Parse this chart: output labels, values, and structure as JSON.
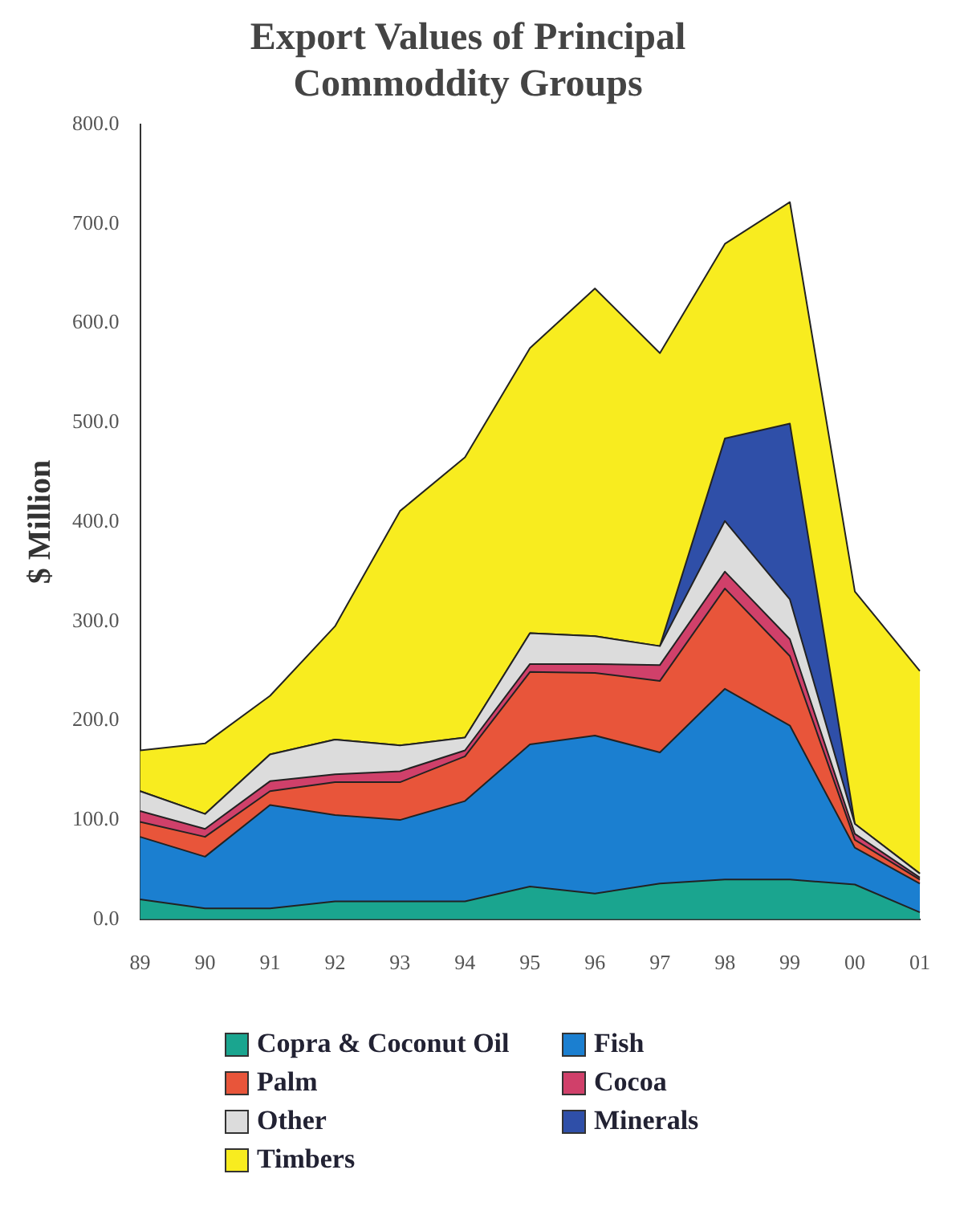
{
  "chart_data": {
    "type": "area",
    "stacked": true,
    "title": [
      "Export Values of Principal",
      "Commoddity Groups"
    ],
    "ylabel": "$ Million",
    "categories": [
      "89",
      "90",
      "91",
      "92",
      "93",
      "94",
      "95",
      "96",
      "97",
      "98",
      "99",
      "00",
      "01"
    ],
    "ylim": [
      0,
      800
    ],
    "yticks": [
      {
        "value": 0,
        "label": "0.0"
      },
      {
        "value": 100,
        "label": "100.0"
      },
      {
        "value": 200,
        "label": "200.0"
      },
      {
        "value": 300,
        "label": "300.0"
      },
      {
        "value": 400,
        "label": "400.0"
      },
      {
        "value": 500,
        "label": "500.0"
      },
      {
        "value": 600,
        "label": "600.0"
      },
      {
        "value": 700,
        "label": "700.0"
      },
      {
        "value": 800,
        "label": "800.0"
      }
    ],
    "grid": false,
    "legend": "bottom",
    "series": [
      {
        "name": "Copra & Coconut Oil",
        "color": "#1aa58f",
        "values": [
          20,
          11,
          11,
          18,
          18,
          18,
          33,
          26,
          36,
          40,
          40,
          35,
          7
        ]
      },
      {
        "name": "Fish",
        "color": "#1b7fd0",
        "values": [
          63,
          52,
          104,
          87,
          82,
          101,
          143,
          159,
          132,
          192,
          155,
          37,
          29
        ]
      },
      {
        "name": "Palm",
        "color": "#e8553a",
        "values": [
          15,
          20,
          14,
          33,
          38,
          45,
          73,
          63,
          72,
          101,
          70,
          8,
          4
        ]
      },
      {
        "name": "Cocoa",
        "color": "#d0406a",
        "values": [
          11,
          8,
          10,
          8,
          11,
          6,
          8,
          9,
          16,
          17,
          17,
          6,
          2
        ]
      },
      {
        "name": "Other",
        "color": "#dcdcdc",
        "values": [
          20,
          15,
          27,
          35,
          26,
          13,
          31,
          28,
          19,
          51,
          40,
          10,
          4
        ]
      },
      {
        "name": "Minerals",
        "color": "#2f4fa8",
        "values": [
          0,
          0,
          0,
          0,
          0,
          0,
          0,
          0,
          0,
          83,
          177,
          0,
          0
        ]
      },
      {
        "name": "Timbers",
        "color": "#f8ec1f",
        "values": [
          41,
          71,
          59,
          114,
          236,
          282,
          287,
          350,
          295,
          196,
          223,
          234,
          204
        ]
      }
    ]
  }
}
